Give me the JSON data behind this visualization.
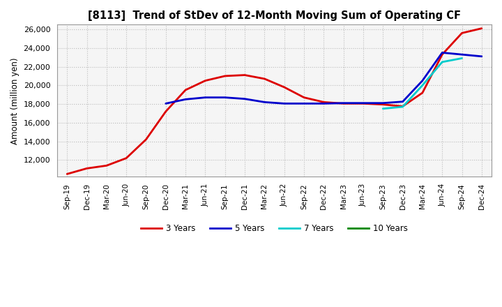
{
  "title": "[8113]  Trend of StDev of 12-Month Moving Sum of Operating CF",
  "ylabel": "Amount (million yen)",
  "ylim": [
    10200,
    26500
  ],
  "yticks": [
    12000,
    14000,
    16000,
    18000,
    20000,
    22000,
    24000,
    26000
  ],
  "plot_bg": "#f5f5f5",
  "fig_bg": "#ffffff",
  "grid_color": "#bbbbbb",
  "x_labels": [
    "Sep-19",
    "Dec-19",
    "Mar-20",
    "Jun-20",
    "Sep-20",
    "Dec-20",
    "Mar-21",
    "Jun-21",
    "Sep-21",
    "Dec-21",
    "Mar-22",
    "Jun-22",
    "Sep-22",
    "Dec-22",
    "Mar-23",
    "Jun-23",
    "Sep-23",
    "Dec-23",
    "Mar-24",
    "Jun-24",
    "Sep-24",
    "Dec-24"
  ],
  "series_3y_x": [
    0,
    1,
    2,
    3,
    4,
    5,
    6,
    7,
    8,
    9,
    10,
    11,
    12,
    13,
    14,
    15,
    16,
    17,
    18,
    19,
    20,
    21
  ],
  "series_3y_y": [
    10500,
    11100,
    11400,
    12200,
    14200,
    17200,
    19500,
    20500,
    21000,
    21100,
    20700,
    19800,
    18700,
    18200,
    18050,
    18050,
    17950,
    17750,
    19200,
    23300,
    25600,
    26100
  ],
  "series_3y_color": "#dd0000",
  "series_5y_x": [
    5,
    6,
    7,
    8,
    9,
    10,
    11,
    12,
    13,
    14,
    15,
    16,
    17,
    18,
    19,
    20,
    21
  ],
  "series_5y_y": [
    18050,
    18500,
    18700,
    18700,
    18550,
    18200,
    18050,
    18050,
    18050,
    18100,
    18100,
    18100,
    18250,
    20500,
    23500,
    23300,
    23100
  ],
  "series_5y_color": "#0000cc",
  "series_7y_x": [
    16,
    17,
    18,
    19,
    20
  ],
  "series_7y_y": [
    17500,
    17700,
    20000,
    22500,
    22900
  ],
  "series_7y_color": "#00cccc",
  "series_10y_x": [],
  "series_10y_y": [],
  "series_10y_color": "#008800",
  "linewidth": 2.0,
  "legend_labels": [
    "3 Years",
    "5 Years",
    "7 Years",
    "10 Years"
  ],
  "legend_colors": [
    "#dd0000",
    "#0000cc",
    "#00cccc",
    "#008800"
  ]
}
